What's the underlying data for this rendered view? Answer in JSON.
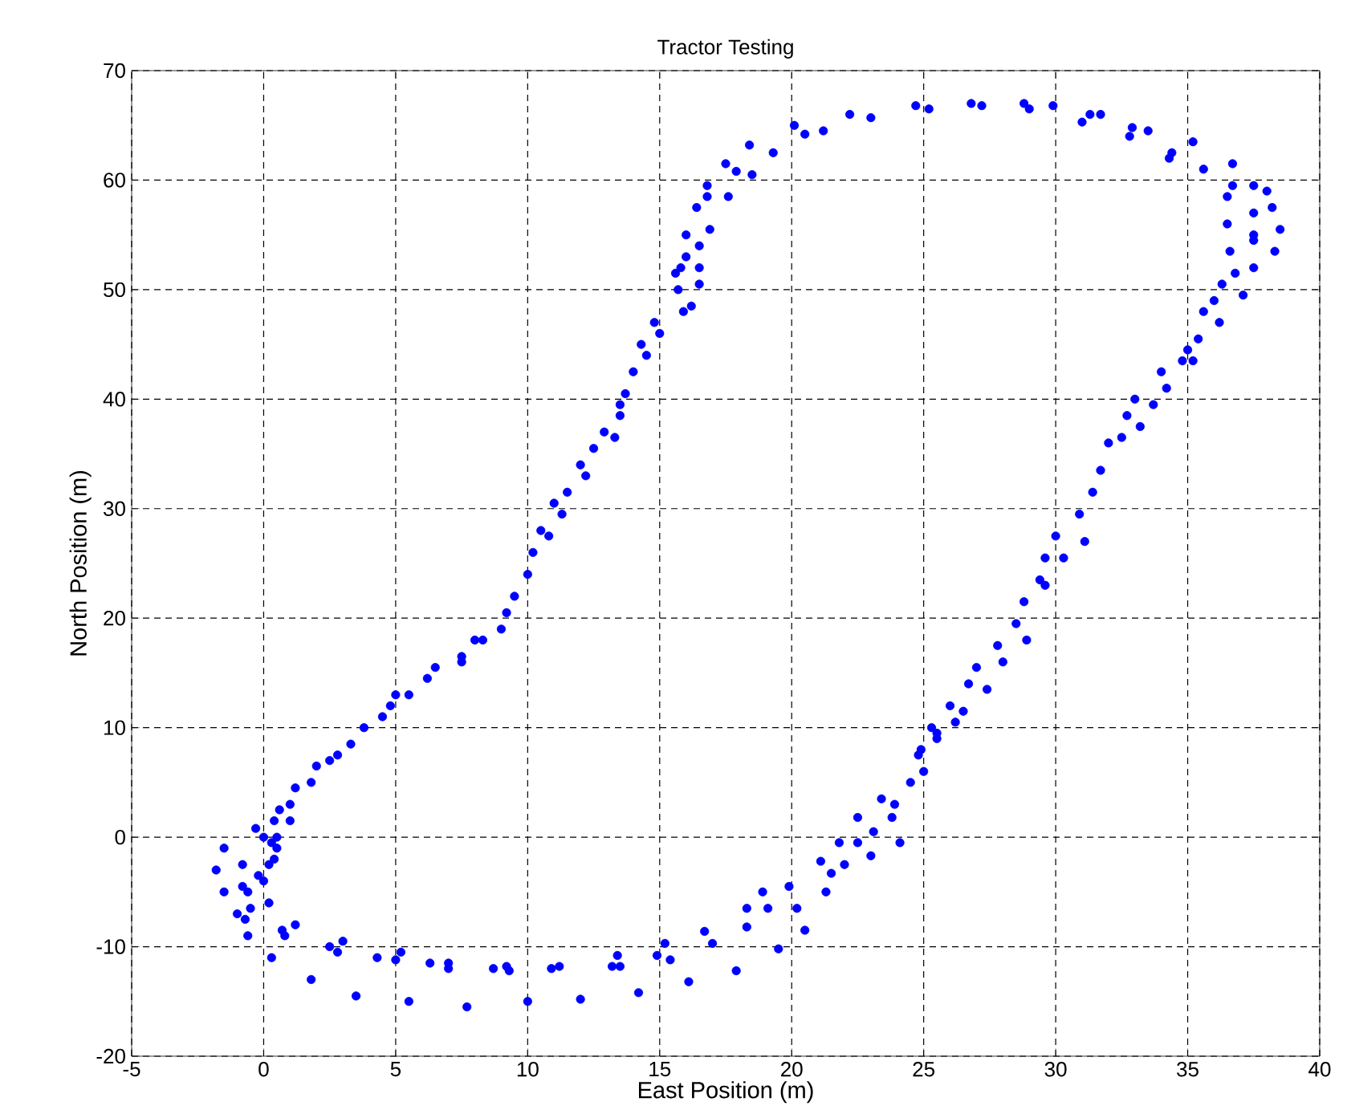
{
  "chart_data": {
    "type": "scatter",
    "title": "Tractor Testing",
    "xlabel": "East Position (m)",
    "ylabel": "North Position (m)",
    "xlim": [
      -5,
      40
    ],
    "ylim": [
      -20,
      70
    ],
    "xticks": [
      -5,
      0,
      5,
      10,
      15,
      20,
      25,
      30,
      35,
      40
    ],
    "yticks": [
      -20,
      -10,
      0,
      10,
      20,
      30,
      40,
      50,
      60,
      70
    ],
    "grid": true,
    "marker": "circle",
    "series": [
      {
        "color": "#0000ff",
        "x": [
          -1.5,
          -1.8,
          -1.5,
          -0.8,
          -0.8,
          -0.6,
          -1,
          -0.7,
          -0.5,
          -0.6,
          -0.3,
          0,
          0.3,
          0.5,
          0.4,
          0.2,
          -0.2,
          0,
          0.2,
          0.3,
          1.2,
          1.8,
          0.7,
          0.8,
          2.5,
          2.8,
          3,
          3.5,
          4.3,
          5,
          5.2,
          5.5,
          6.3,
          7,
          7,
          7.7,
          8.7,
          9.2,
          9.3,
          10,
          10.9,
          11.2,
          12,
          13.2,
          13.4,
          13.5,
          14.2,
          14.9,
          15.2,
          15.4,
          16.1,
          17,
          16.7,
          17.9,
          18.3,
          18.3,
          18.9,
          19.1,
          19.5,
          19.9,
          20.2,
          20.5,
          21.1,
          21.3,
          21.5,
          21.8,
          22.0,
          22.5,
          22.5,
          23,
          23.1,
          23.4,
          23.8,
          23.9,
          24.1,
          24.5,
          24.8,
          24.9,
          25.3,
          25.5,
          25.5,
          25,
          26,
          26.2,
          26.5,
          26.7,
          27,
          27.4,
          27.8,
          28,
          28.5,
          28.8,
          28.9,
          29.4,
          29.6,
          29.6,
          30,
          30.3,
          30.9,
          31.4,
          31.1,
          31.7,
          32.0,
          32.5,
          32.7,
          33,
          33.2,
          33.7,
          34,
          34.2,
          34.8,
          35,
          35.4,
          35.2,
          35.6,
          36,
          36.2,
          36.3,
          36.8,
          36.6,
          37.5,
          37.5,
          37.5,
          36.5,
          36.5,
          36.7,
          37.5,
          38,
          38.2,
          38.5,
          38.3,
          37.5,
          37.1,
          36.7,
          35.6,
          35.2,
          34.4,
          34.3,
          33.5,
          32.9,
          32.8,
          31.7,
          31.3,
          31,
          29.9,
          29,
          28.8,
          27.2,
          26.8,
          25.2,
          24.7,
          23,
          22.2,
          21.2,
          20.5,
          20.1,
          19.3,
          18.4,
          18.5,
          17.9,
          17.5,
          17.6,
          16.8,
          16.8,
          16.4,
          16.9,
          16.5,
          16,
          16,
          16.5,
          16.5,
          15.8,
          15.7,
          16.2,
          15.9,
          15.6,
          14.8,
          15,
          14.5,
          14.3,
          14,
          13.7,
          13.5,
          13.5,
          12.9,
          13.3,
          12.5,
          12,
          12.2,
          11.5,
          11,
          11.3,
          10.5,
          10.8,
          10.2,
          10,
          9.5,
          9.2,
          9,
          8.3,
          8,
          7.5,
          7.5,
          6.5,
          6.2,
          5.5,
          5,
          4.8,
          4.5,
          3.8,
          3.3,
          2.8,
          2.5,
          2,
          1.8,
          1.2,
          1,
          1,
          0.5,
          0.4,
          0.6
        ],
        "values": [
          -1,
          -3,
          -5,
          -2.5,
          -4.5,
          -5,
          -7,
          -7.5,
          -6.5,
          -9,
          0.8,
          0,
          -0.5,
          -1,
          -2,
          -2.5,
          -3.5,
          -4,
          -6,
          -11,
          -8,
          -13,
          -8.5,
          -9,
          -10,
          -10.5,
          -9.5,
          -14.5,
          -11,
          -11.2,
          -10.5,
          -15,
          -11.5,
          -11.5,
          -12,
          -15.5,
          -12,
          -11.8,
          -12.2,
          -15,
          -12,
          -11.8,
          -14.8,
          -11.8,
          -10.8,
          -11.8,
          -14.2,
          -10.8,
          -9.7,
          -11.2,
          -13.2,
          -9.7,
          -8.6,
          -12.2,
          -8.2,
          -6.5,
          -5,
          -6.5,
          -10.2,
          -4.5,
          -6.5,
          -8.5,
          -2.2,
          -5,
          -3.3,
          -0.5,
          -2.5,
          1.8,
          -0.5,
          -1.7,
          0.5,
          3.5,
          1.8,
          3,
          -0.5,
          5,
          7.5,
          8,
          10,
          9.5,
          9,
          6,
          12,
          10.5,
          11.5,
          14,
          15.5,
          13.5,
          17.5,
          16,
          19.5,
          21.5,
          18,
          23.5,
          25.5,
          23,
          27.5,
          25.5,
          29.5,
          31.5,
          27,
          33.5,
          36,
          36.5,
          38.5,
          40,
          37.5,
          39.5,
          42.5,
          41,
          43.5,
          44.5,
          45.5,
          43.5,
          48,
          49,
          47,
          50.5,
          51.5,
          53.5,
          52,
          55,
          57,
          56,
          58.5,
          59.5,
          59.5,
          59,
          57.5,
          55.5,
          53.5,
          54.5,
          49.5,
          61.5,
          61,
          63.5,
          62.5,
          62,
          64.5,
          64.8,
          64,
          66,
          66,
          65.3,
          66.8,
          66.5,
          67,
          66.8,
          67,
          66.5,
          66.8,
          65.7,
          66,
          64.5,
          64.2,
          65,
          62.5,
          63.2,
          60.5,
          60.8,
          61.5,
          58.5,
          59.5,
          58.5,
          57.5,
          55.5,
          54,
          55,
          53,
          52,
          50.5,
          52,
          50,
          48.5,
          48,
          51.5,
          47,
          46,
          44,
          45,
          42.5,
          40.5,
          39.5,
          38.5,
          37,
          36.5,
          35.5,
          34,
          33,
          31.5,
          30.5,
          29.5,
          28,
          27.5,
          26,
          24,
          22,
          20.5,
          19,
          18,
          18,
          16.5,
          16,
          15.5,
          14.5,
          13,
          13,
          12,
          11,
          10,
          8.5,
          7.5,
          7,
          6.5,
          5,
          4.5,
          3,
          1.5,
          0,
          1.5,
          2.5
        ]
      }
    ]
  }
}
